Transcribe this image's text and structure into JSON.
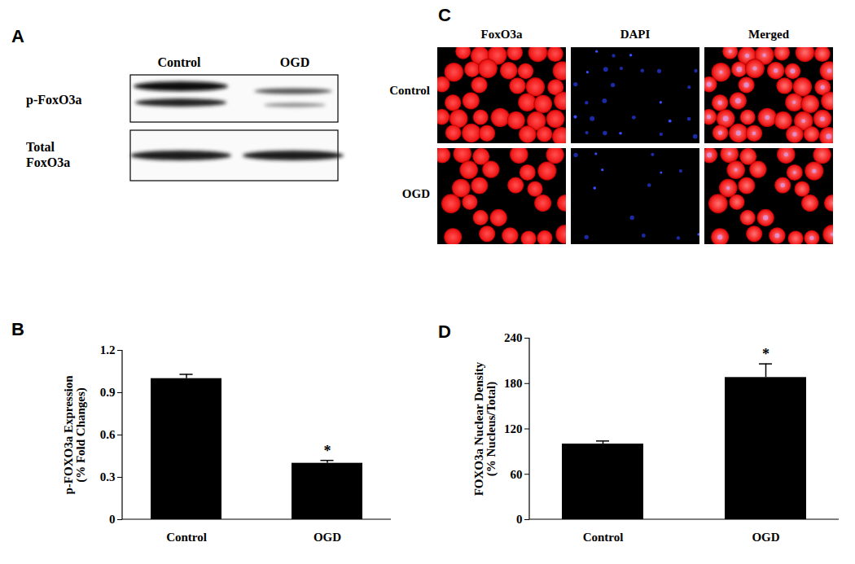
{
  "blot": {
    "panel_label": "A",
    "lanes": [
      "Control",
      "OGD"
    ],
    "rows": [
      "p-FoxO3a",
      "Total\nFoxO3a"
    ]
  },
  "micrographs": {
    "panel_label": "C",
    "columns": [
      "FoxO3a",
      "DAPI",
      "Merged"
    ],
    "rows": [
      "Control",
      "OGD"
    ]
  },
  "chart_data": [
    {
      "type": "bar",
      "title": "B",
      "categories": [
        "Control",
        "OGD"
      ],
      "values": [
        1.0,
        0.4
      ],
      "errors": [
        0.03,
        0.02
      ],
      "color": "#000000",
      "ylabel": "p-FOXO3a Expression\n(% Fold Changes)",
      "ylim": [
        0,
        1.2
      ],
      "yticks": [
        0,
        0.3,
        0.6,
        0.9,
        1.2
      ],
      "annotations": [
        {
          "category": "OGD",
          "text": "*"
        }
      ]
    },
    {
      "type": "bar",
      "title": "D",
      "categories": [
        "Control",
        "OGD"
      ],
      "values": [
        100,
        188
      ],
      "errors": [
        4,
        18
      ],
      "color": "#000000",
      "ylabel": "FOXO3a Nuclear Density\n(% Nucleus/Total)",
      "ylim": [
        0,
        240
      ],
      "yticks": [
        0,
        60,
        120,
        180,
        240
      ],
      "annotations": [
        {
          "category": "OGD",
          "text": "*"
        }
      ]
    }
  ]
}
